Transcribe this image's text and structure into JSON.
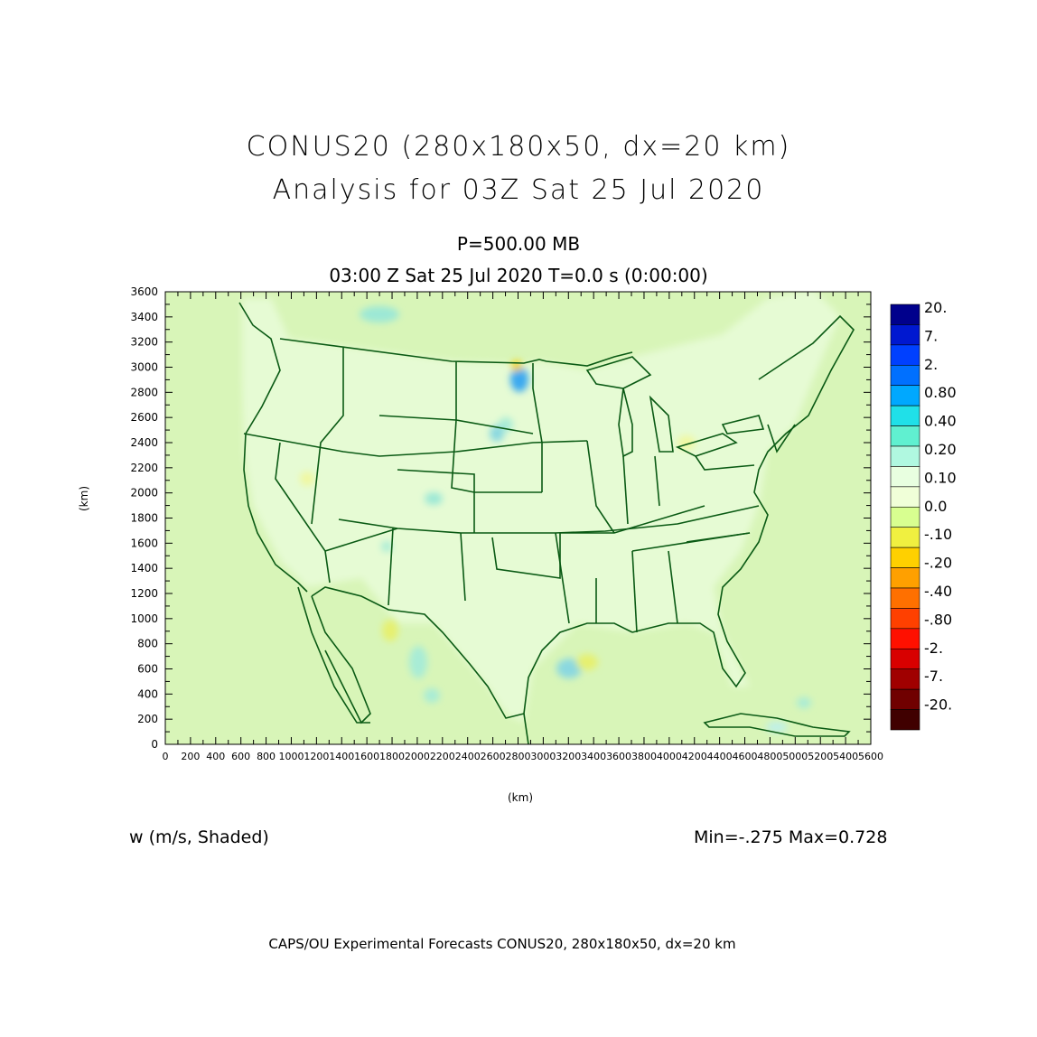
{
  "title": {
    "line1": "CONUS20 (280x180x50, dx=20 km)",
    "line2": "Analysis for 03Z Sat 25 Jul 2020"
  },
  "subtitle": {
    "level": "P=500.00 MB",
    "time": "03:00 Z Sat 25 Jul 2020    T=0.0 s (0:00:00)"
  },
  "axes": {
    "x_label": "(km)",
    "y_label": "(km)",
    "x_ticks": [
      "0",
      "200",
      "400",
      "600",
      "800",
      "1000",
      "1200",
      "1400",
      "1600",
      "1800",
      "2000",
      "2200",
      "2400",
      "2600",
      "2800",
      "3000",
      "3200",
      "3400",
      "3600",
      "3800",
      "4000",
      "4200",
      "4400",
      "4600",
      "4800",
      "5000",
      "5200",
      "5400",
      "5600"
    ],
    "y_ticks": [
      "0",
      "200",
      "400",
      "600",
      "800",
      "1000",
      "1200",
      "1400",
      "1600",
      "1800",
      "2000",
      "2200",
      "2400",
      "2600",
      "2800",
      "3000",
      "3200",
      "3400",
      "3600"
    ],
    "x_range": [
      0,
      5600
    ],
    "y_range": [
      0,
      3600
    ]
  },
  "field": {
    "name": "w (m/s, Shaded)",
    "minmax": "Min=-.275  Max=0.728"
  },
  "colorbar": {
    "labels": [
      "20.",
      "7.",
      "2.",
      "0.80",
      "0.40",
      "0.20",
      "0.10",
      "0.0",
      "-.10",
      "-.20",
      "-.40",
      "-.80",
      "-2.",
      "-7.",
      "-20."
    ],
    "colors": [
      "#00008c",
      "#0018d0",
      "#0040ff",
      "#0070ff",
      "#00a8ff",
      "#20e0e8",
      "#60f0d0",
      "#b0f8e0",
      "#e8ffe0",
      "#f0ffd8",
      "#d8ff90",
      "#f0f040",
      "#ffd000",
      "#ffa000",
      "#ff7000",
      "#ff4000",
      "#ff1000",
      "#d80000",
      "#a00000",
      "#700000",
      "#400000"
    ]
  },
  "footer": "CAPS/OU Experimental Forecasts  CONUS20, 280x180x50, dx=20 km"
}
